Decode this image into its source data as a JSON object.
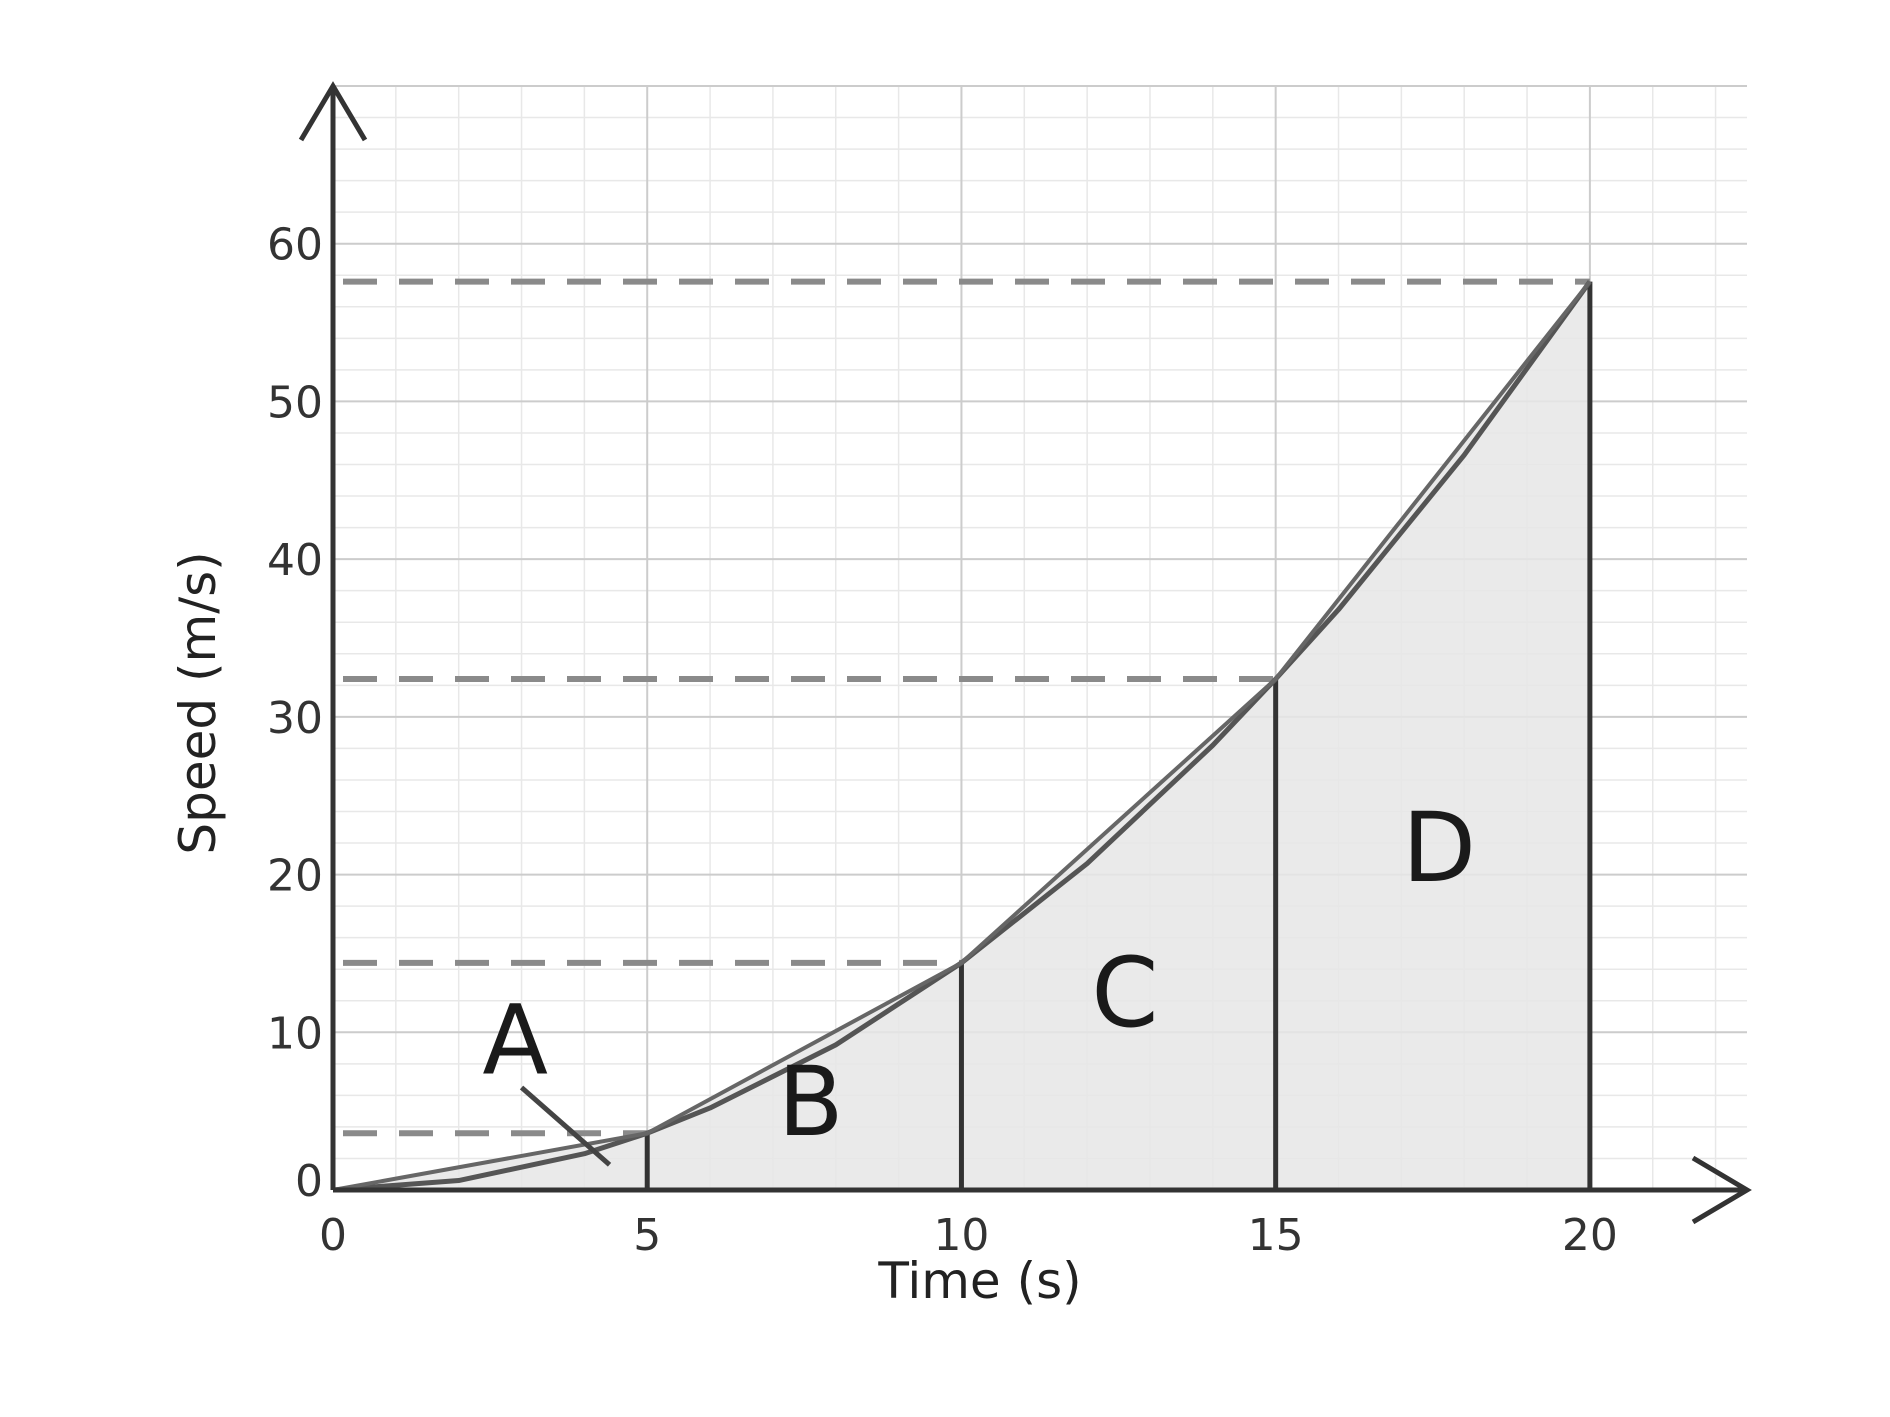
{
  "chart_data": {
    "type": "line",
    "title": "",
    "xlabel": "Time (s)",
    "ylabel": "Speed (m/s)",
    "xlim": [
      0,
      22.5
    ],
    "ylim": [
      0,
      70
    ],
    "x_ticks": [
      0,
      5,
      10,
      15,
      20
    ],
    "y_ticks": [
      0,
      10,
      20,
      30,
      40,
      50,
      60
    ],
    "x_tick_labels": [
      "0",
      "5",
      "10",
      "15",
      "20"
    ],
    "y_tick_labels": [
      "0",
      "10",
      "20",
      "30",
      "40",
      "50",
      "60"
    ],
    "grid": true,
    "minor_grid_per_major": 5,
    "series": [
      {
        "x": [
          0,
          2,
          4,
          5,
          6,
          8,
          10,
          12,
          14,
          15,
          16,
          18,
          20
        ],
        "y": [
          0,
          0.6,
          2.3,
          3.6,
          5.2,
          9.2,
          14.4,
          20.7,
          28.2,
          32.4,
          36.8,
          46.6,
          57.6
        ],
        "color": "#555555"
      }
    ],
    "trapezium_points": [
      {
        "x": 0,
        "y": 0
      },
      {
        "x": 5,
        "y": 3.6
      },
      {
        "x": 10,
        "y": 14.4
      },
      {
        "x": 15,
        "y": 32.4
      },
      {
        "x": 20,
        "y": 57.6
      }
    ],
    "reference_lines_y": [
      3.6,
      14.4,
      32.4,
      57.6
    ],
    "regions": [
      {
        "label": "A",
        "x_from": 0,
        "x_to": 5
      },
      {
        "label": "B",
        "x_from": 5,
        "x_to": 10
      },
      {
        "label": "C",
        "x_from": 10,
        "x_to": 15
      },
      {
        "label": "D",
        "x_from": 15,
        "x_to": 20
      }
    ],
    "colors": {
      "curve": "#555555",
      "trapezium": "#666666",
      "vertical_lines": "#333333",
      "fill": "#e6e6e6",
      "dashed": "#8a8a8a",
      "axis": "#333333",
      "major_grid": "#cccccc",
      "minor_grid": "#e8e8e8"
    }
  }
}
